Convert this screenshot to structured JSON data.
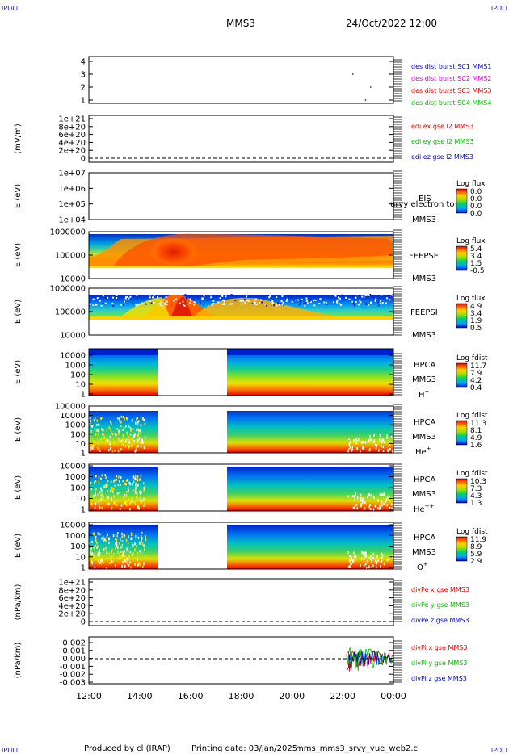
{
  "corner_labels": {
    "top_left": "IPDLI",
    "top_right": "IPDLI",
    "bottom_left": "IPDLI",
    "bottom_right": "IPDLI"
  },
  "header": {
    "spacecraft": "MMS3",
    "datetime": "24/Oct/2022 12:00"
  },
  "footer": {
    "produced_by": "Produced by cl (IRAP)",
    "printing_date": "Printing date: 03/Jan/2025",
    "filename": "mms_mms3_srvy_vue_web2.cl"
  },
  "colors": {
    "mms1": "#0000cc",
    "mms2": "#cc00cc",
    "mms3": "#dd0000",
    "mms4": "#00bb00",
    "ex": "#dd0000",
    "ey": "#00bb00",
    "ez": "#0000cc"
  },
  "chart_data": [
    {
      "type": "scatter",
      "panel": "burst",
      "yticks": [
        "4",
        "3",
        "2",
        "1"
      ],
      "legend": [
        {
          "label": "des dist burst SC1 MMS1",
          "color": "#0000cc"
        },
        {
          "label": "des dist burst SC2 MMS2",
          "color": "#cc00cc"
        },
        {
          "label": "des dist burst SC3 MMS3",
          "color": "#dd0000"
        },
        {
          "label": "des dist burst SC4 MMS4",
          "color": "#00bb00"
        }
      ],
      "points": [
        {
          "x": 22.4,
          "y": 3
        },
        {
          "x": 23.1,
          "y": 2
        },
        {
          "x": 22.9,
          "y": 1
        }
      ]
    },
    {
      "type": "line",
      "panel": "edi",
      "ylabel": "(mV/m)",
      "yticks": [
        "1e+21",
        "8e+20",
        "6e+20",
        "4e+20",
        "2e+20",
        "0"
      ],
      "legend": [
        {
          "label": "edi ex gse l2 MMS3",
          "color": "#dd0000"
        },
        {
          "label": "edi ey gse l2 MMS3",
          "color": "#00bb00"
        },
        {
          "label": "edi ez gse l2 MMS3",
          "color": "#0000cc"
        }
      ],
      "zero_line": 0
    },
    {
      "type": "heatmap",
      "panel": "eis",
      "ylabel": "E (eV)",
      "scale": "log",
      "yticks": [
        "1e+07",
        "1e+06",
        "1e+05",
        "1e+04"
      ],
      "side_labels": [
        "EIS",
        "MMS3"
      ],
      "overlay_text": "urvy electron to",
      "colorbar": {
        "title": "Log flux",
        "ticks": [
          "0.0",
          "0.0",
          "0.0",
          "0.0"
        ]
      }
    },
    {
      "type": "heatmap",
      "panel": "feepse",
      "ylabel": "E (eV)",
      "scale": "log",
      "yticks": [
        "1000000",
        "100000",
        "10000"
      ],
      "side_labels": [
        "FEEPSE",
        "MMS3"
      ],
      "colorbar": {
        "title": "Log flux",
        "ticks": [
          "5.4",
          "3.4",
          "1.5",
          "-0.5"
        ]
      }
    },
    {
      "type": "heatmap",
      "panel": "feepsi",
      "ylabel": "E (eV)",
      "scale": "log",
      "yticks": [
        "1000000",
        "100000",
        "10000"
      ],
      "side_labels": [
        "FEEPSI",
        "MMS3"
      ],
      "colorbar": {
        "title": "Log flux",
        "ticks": [
          "4.9",
          "3.4",
          "1.9",
          "0.5"
        ]
      }
    },
    {
      "type": "heatmap",
      "panel": "hpca-h",
      "ylabel": "E (eV)",
      "scale": "log",
      "yticks": [
        "10000",
        "1000",
        "100",
        "10",
        "1"
      ],
      "side_labels": [
        "HPCA",
        "MMS3"
      ],
      "species": "H",
      "charge": "+",
      "data_gap": [
        14.7,
        17.4
      ],
      "colorbar": {
        "title": "Log fdist",
        "ticks": [
          "11.7",
          "7.9",
          "4.2",
          "0.4"
        ]
      }
    },
    {
      "type": "heatmap",
      "panel": "hpca-he",
      "ylabel": "E (eV)",
      "scale": "log",
      "yticks": [
        "100000",
        "10000",
        "1000",
        "100",
        "10",
        "1"
      ],
      "side_labels": [
        "HPCA",
        "MMS3"
      ],
      "species": "He",
      "charge": "+",
      "data_gap": [
        14.7,
        17.4
      ],
      "colorbar": {
        "title": "Log fdist",
        "ticks": [
          "11.3",
          "8.1",
          "4.9",
          "1.6"
        ]
      }
    },
    {
      "type": "heatmap",
      "panel": "hpca-hepp",
      "ylabel": "E (eV)",
      "scale": "log",
      "yticks": [
        "10000",
        "1000",
        "100",
        "10",
        "1"
      ],
      "side_labels": [
        "HPCA",
        "MMS3"
      ],
      "species": "He",
      "charge": "++",
      "data_gap": [
        14.7,
        17.4
      ],
      "colorbar": {
        "title": "Log fdist",
        "ticks": [
          "10.3",
          "7.3",
          "4.3",
          "1.3"
        ]
      }
    },
    {
      "type": "heatmap",
      "panel": "hpca-o",
      "ylabel": "E (eV)",
      "scale": "log",
      "yticks": [
        "10000",
        "1000",
        "100",
        "10",
        "1"
      ],
      "side_labels": [
        "HPCA",
        "MMS3"
      ],
      "species": "O",
      "charge": "+",
      "data_gap": [
        14.7,
        17.4
      ],
      "colorbar": {
        "title": "Log fdist",
        "ticks": [
          "11.9",
          "8.9",
          "5.9",
          "2.9"
        ]
      }
    },
    {
      "type": "line",
      "panel": "divpe",
      "ylabel": "(nPa/km)",
      "yticks": [
        "1e+21",
        "8e+20",
        "6e+20",
        "4e+20",
        "2e+20",
        "0"
      ],
      "legend": [
        {
          "label": "divPe x gse MMS3",
          "color": "#dd0000"
        },
        {
          "label": "divPe y gse MMS3",
          "color": "#00bb00"
        },
        {
          "label": "divPe z gse MMS3",
          "color": "#0000cc"
        }
      ],
      "zero_line": 0
    },
    {
      "type": "line",
      "panel": "divpi",
      "ylabel": "(nPa/km)",
      "yticks": [
        "0.002",
        "0.001",
        "0.000",
        "-0.001",
        "-0.002",
        "-0.003"
      ],
      "ylim": [
        -0.0033,
        0.0028
      ],
      "legend": [
        {
          "label": "divPi x gse MMS3",
          "color": "#dd0000"
        },
        {
          "label": "divPi y gse MMS3",
          "color": "#00bb00"
        },
        {
          "label": "divPi z gse MMS3",
          "color": "#0000cc"
        }
      ],
      "data_start_hour": 22.15,
      "zero_line": 0
    }
  ],
  "xaxis": {
    "ticks": [
      "12:00",
      "14:00",
      "16:00",
      "18:00",
      "20:00",
      "22:00",
      "00:00"
    ],
    "range_hours": [
      12,
      24
    ]
  }
}
